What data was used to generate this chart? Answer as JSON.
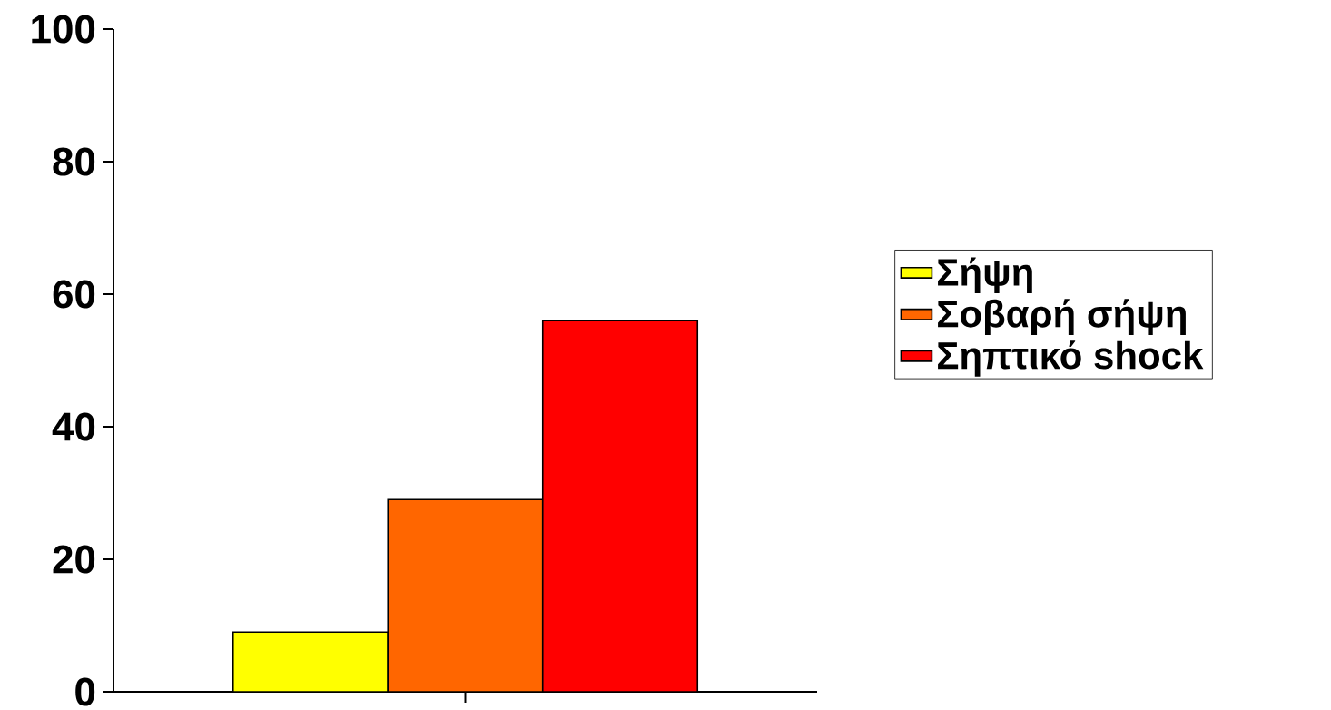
{
  "chart_data": {
    "type": "bar",
    "categories": [
      null
    ],
    "series": [
      {
        "name": "Σήψη",
        "color": "#ffff00",
        "values": [
          9
        ]
      },
      {
        "name": "Σοβαρή σήψη",
        "color": "#ff6600",
        "values": [
          29
        ]
      },
      {
        "name": "Σηπτικό shock",
        "color": "#ff0000",
        "values": [
          56
        ]
      }
    ],
    "ylim": [
      0,
      100
    ],
    "yticks": [
      0,
      20,
      40,
      60,
      80,
      100
    ],
    "legend": "right"
  }
}
